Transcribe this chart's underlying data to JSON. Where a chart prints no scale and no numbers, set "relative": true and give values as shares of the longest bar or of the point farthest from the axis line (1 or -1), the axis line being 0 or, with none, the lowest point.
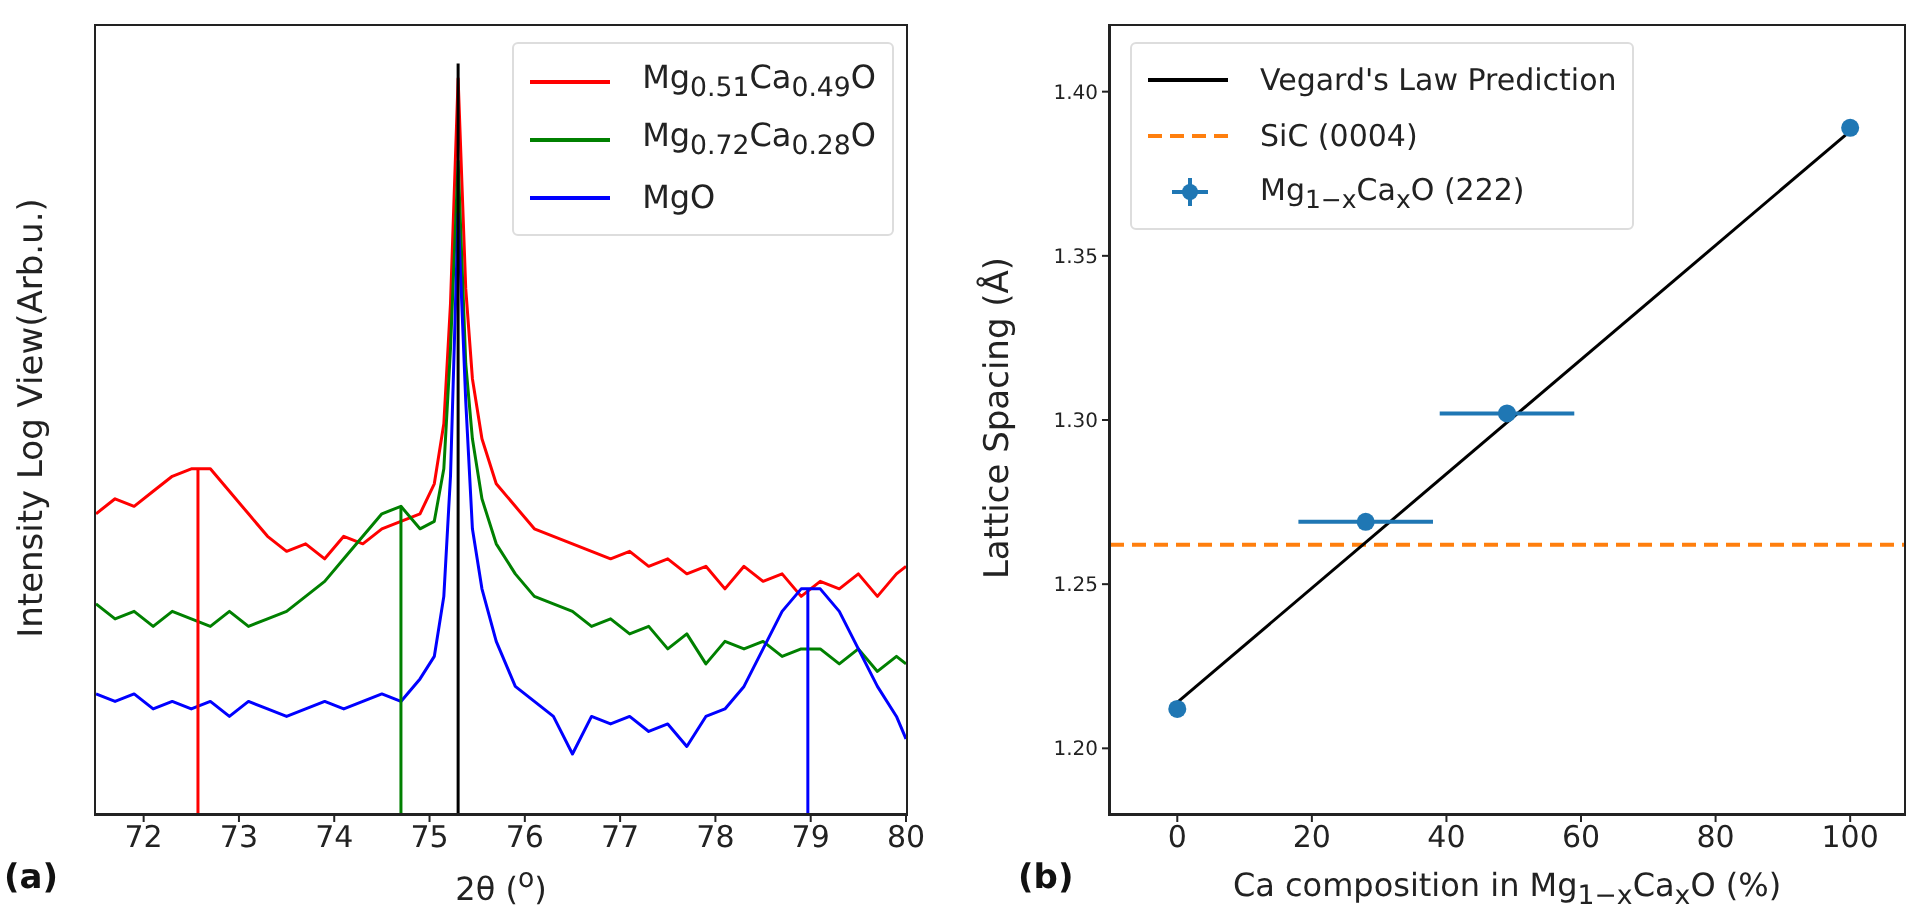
{
  "chart_data": [
    {
      "type": "line",
      "relative": true,
      "xlabel": "2θ ($^{o}$)",
      "ylabel": "Intensity Log View(Arb.u.)",
      "annotations": [
        "(a)"
      ],
      "xlim": [
        71.5,
        80
      ],
      "xticks": [
        72,
        73,
        74,
        75,
        76,
        77,
        78,
        79,
        80
      ],
      "tick_labels": "x",
      "legend": "top right",
      "grid": false,
      "series": [
        {
          "name": "Mg$_{0.51}$Ca$_{0.49}$O",
          "color": "#ff0000",
          "x": [
            71.5,
            71.7,
            71.9,
            72.1,
            72.3,
            72.5,
            72.7,
            72.9,
            73.1,
            73.3,
            73.5,
            73.7,
            73.9,
            74.1,
            74.3,
            74.5,
            74.7,
            74.9,
            75.05,
            75.15,
            75.22,
            75.3,
            75.38,
            75.45,
            75.55,
            75.7,
            75.9,
            76.1,
            76.3,
            76.5,
            76.7,
            76.9,
            77.1,
            77.3,
            77.5,
            77.7,
            77.9,
            78.1,
            78.3,
            78.5,
            78.7,
            78.9,
            79.1,
            79.3,
            79.5,
            79.7,
            79.9,
            80.0
          ],
          "values": [
            0.4,
            0.42,
            0.41,
            0.43,
            0.45,
            0.46,
            0.46,
            0.43,
            0.4,
            0.37,
            0.35,
            0.36,
            0.34,
            0.37,
            0.36,
            0.38,
            0.39,
            0.4,
            0.44,
            0.52,
            0.68,
            0.98,
            0.7,
            0.58,
            0.5,
            0.44,
            0.41,
            0.38,
            0.37,
            0.36,
            0.35,
            0.34,
            0.35,
            0.33,
            0.34,
            0.32,
            0.33,
            0.3,
            0.33,
            0.31,
            0.32,
            0.29,
            0.31,
            0.3,
            0.32,
            0.29,
            0.32,
            0.33
          ]
        },
        {
          "name": "Mg$_{0.72}$Ca$_{0.28}$O",
          "color": "#008000",
          "x": [
            71.5,
            71.7,
            71.9,
            72.1,
            72.3,
            72.5,
            72.7,
            72.9,
            73.1,
            73.3,
            73.5,
            73.7,
            73.9,
            74.1,
            74.3,
            74.5,
            74.7,
            74.9,
            75.05,
            75.15,
            75.22,
            75.3,
            75.38,
            75.45,
            75.55,
            75.7,
            75.9,
            76.1,
            76.3,
            76.5,
            76.7,
            76.9,
            77.1,
            77.3,
            77.5,
            77.7,
            77.9,
            78.1,
            78.3,
            78.5,
            78.7,
            78.9,
            79.1,
            79.3,
            79.5,
            79.7,
            79.9,
            80.0
          ],
          "values": [
            0.28,
            0.26,
            0.27,
            0.25,
            0.27,
            0.26,
            0.25,
            0.27,
            0.25,
            0.26,
            0.27,
            0.29,
            0.31,
            0.34,
            0.37,
            0.4,
            0.41,
            0.38,
            0.39,
            0.46,
            0.62,
            0.87,
            0.6,
            0.5,
            0.42,
            0.36,
            0.32,
            0.29,
            0.28,
            0.27,
            0.25,
            0.26,
            0.24,
            0.25,
            0.22,
            0.24,
            0.2,
            0.23,
            0.22,
            0.23,
            0.21,
            0.22,
            0.22,
            0.2,
            0.22,
            0.19,
            0.21,
            0.2
          ]
        },
        {
          "name": "MgO",
          "color": "#0000ff",
          "x": [
            71.5,
            71.7,
            71.9,
            72.1,
            72.3,
            72.5,
            72.7,
            72.9,
            73.1,
            73.3,
            73.5,
            73.7,
            73.9,
            74.1,
            74.3,
            74.5,
            74.7,
            74.9,
            75.05,
            75.15,
            75.22,
            75.3,
            75.38,
            75.45,
            75.55,
            75.7,
            75.9,
            76.1,
            76.3,
            76.5,
            76.7,
            76.9,
            77.1,
            77.3,
            77.5,
            77.7,
            77.9,
            78.1,
            78.3,
            78.5,
            78.7,
            78.9,
            79.1,
            79.3,
            79.5,
            79.7,
            79.9,
            80.0
          ],
          "values": [
            0.16,
            0.15,
            0.16,
            0.14,
            0.15,
            0.14,
            0.15,
            0.13,
            0.15,
            0.14,
            0.13,
            0.14,
            0.15,
            0.14,
            0.15,
            0.16,
            0.15,
            0.18,
            0.21,
            0.29,
            0.45,
            0.8,
            0.55,
            0.38,
            0.3,
            0.23,
            0.17,
            0.15,
            0.13,
            0.08,
            0.13,
            0.12,
            0.13,
            0.11,
            0.12,
            0.09,
            0.13,
            0.14,
            0.17,
            0.22,
            0.27,
            0.3,
            0.3,
            0.27,
            0.22,
            0.17,
            0.13,
            0.1
          ]
        },
        {
          "color": "#ff0000",
          "x": [
            72.57,
            72.57
          ],
          "values": [
            0,
            0.46
          ]
        },
        {
          "color": "#008000",
          "x": [
            74.7,
            74.7
          ],
          "values": [
            0,
            0.41
          ]
        },
        {
          "color": "#000000",
          "x": [
            75.3,
            75.3
          ],
          "values": [
            0,
            1
          ]
        },
        {
          "color": "#0000ff",
          "x": [
            78.97,
            78.97
          ],
          "values": [
            0,
            0.3
          ]
        }
      ]
    },
    {
      "type": "line",
      "xlabel": "Ca composition in Mg$_{1−x}$Ca$_{x}$O (%)",
      "ylabel": "Lattice Spacing (Å)",
      "annotations": [
        "(b)"
      ],
      "xlim": [
        -10,
        108
      ],
      "xticks": [
        0,
        20,
        40,
        60,
        80,
        100
      ],
      "ylim": [
        1.18,
        1.42
      ],
      "yticks": [
        {
          "value": 1.2,
          "label": "1.20"
        },
        {
          "value": 1.25,
          "label": "1.25"
        },
        {
          "value": 1.3,
          "label": "1.30"
        },
        {
          "value": 1.35,
          "label": "1.35"
        },
        {
          "value": 1.4,
          "label": "1.40"
        }
      ],
      "legend": "top left",
      "grid": false,
      "ref_lines": [
        {
          "axis": "y",
          "value": 1.262,
          "label": "SiC (0004)",
          "color": "#ff7f0e",
          "line_style": "dashed"
        }
      ],
      "series": [
        {
          "name": "Vegard's Law Prediction",
          "color": "#000000",
          "x": [
            0,
            100
          ],
          "values": [
            1.214,
            1.388
          ]
        },
        {
          "type": "scatter",
          "name": "Mg$_{1−x}$Ca$_{x}$O (222)",
          "color": "#1f77b4",
          "marker": "circle",
          "x": [
            0,
            28,
            49,
            100
          ],
          "values": [
            1.212,
            1.269,
            1.302,
            1.389
          ],
          "xerrors": [
            null,
            10,
            10,
            null
          ]
        }
      ]
    }
  ]
}
